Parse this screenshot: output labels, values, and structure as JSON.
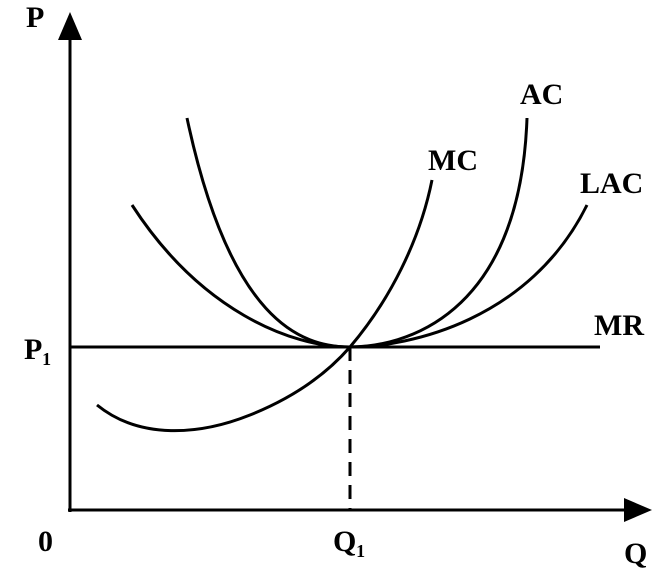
{
  "axes": {
    "y_label": "P",
    "x_label": "Q",
    "origin": "0",
    "price_label": "P₁",
    "quantity_label": "Q₁"
  },
  "curves": {
    "mc": "MC",
    "ac": "AC",
    "lac": "LAC",
    "mr": "MR"
  }
}
